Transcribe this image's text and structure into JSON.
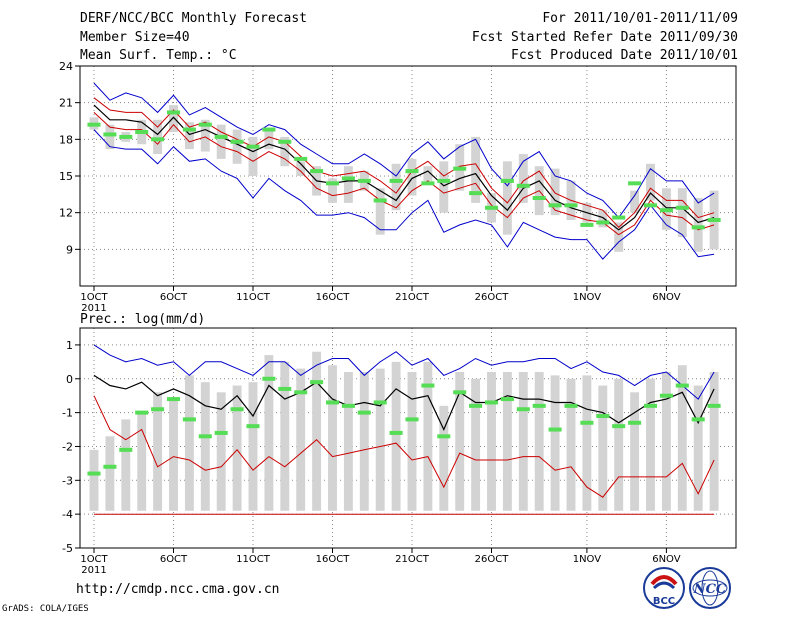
{
  "header": {
    "title": "DERF/NCC/BCC Monthly Forecast",
    "member_size": "Member Size=40",
    "variable": "Mean Surf. Temp.: °C",
    "period": "For 2011/10/01-2011/11/09",
    "start": "Fcst Started Refer Date 2011/09/30",
    "produced": "Fcst Produced Date 2011/10/01"
  },
  "footer": {
    "url": "http://cmdp.ncc.cma.gov.cn",
    "grads": "GrADS: COLA/IGES"
  },
  "logos": {
    "bcc": "BCC",
    "ncc": "NCC"
  },
  "colors": {
    "max": "#0000cc",
    "mean": "#000000",
    "min": "#cc0000",
    "bar": "#d3d3d3",
    "marker": "#55dd55",
    "grid": "#888888"
  },
  "chart_data": [
    {
      "type": "line",
      "title": "Mean Surf. Temp.: °C",
      "x_tick_labels": [
        "1OCT",
        "6OCT",
        "11OCT",
        "16OCT",
        "21OCT",
        "26OCT",
        "1NOV",
        "6NOV"
      ],
      "year_label": "2011",
      "x_tick_days": [
        1,
        6,
        11,
        16,
        21,
        26,
        32,
        37
      ],
      "days": 40,
      "ylim": [
        6,
        24
      ],
      "yticks": [
        9,
        12,
        15,
        18,
        21,
        24
      ],
      "series": [
        {
          "name": "max",
          "color": "#0000cc",
          "values": [
            22.6,
            21.2,
            21.8,
            21.4,
            20.2,
            21.6,
            20.0,
            20.6,
            19.8,
            19.0,
            18.4,
            19.2,
            18.8,
            17.6,
            16.8,
            16.0,
            16.0,
            16.8,
            16.0,
            15.0,
            16.8,
            17.8,
            16.4,
            17.4,
            18.0,
            15.6,
            14.2,
            16.2,
            17.0,
            15.0,
            14.6,
            13.6,
            13.0,
            11.6,
            13.4,
            15.6,
            14.6,
            14.6,
            12.8,
            13.6
          ]
        },
        {
          "name": "upper",
          "color": "#cc0000",
          "values": [
            21.4,
            20.4,
            20.2,
            20.2,
            19.0,
            20.4,
            19.0,
            19.4,
            18.6,
            18.0,
            17.4,
            18.2,
            17.8,
            16.6,
            15.4,
            15.0,
            15.2,
            15.4,
            14.6,
            13.6,
            15.4,
            16.2,
            15.0,
            15.8,
            16.0,
            14.0,
            12.8,
            14.6,
            15.4,
            13.6,
            13.0,
            12.6,
            12.2,
            10.8,
            12.0,
            14.0,
            13.0,
            13.0,
            11.6,
            12.0
          ]
        },
        {
          "name": "mean",
          "color": "#000000",
          "values": [
            20.8,
            19.6,
            19.6,
            19.4,
            18.4,
            19.8,
            18.4,
            18.8,
            18.2,
            17.6,
            17.0,
            17.6,
            17.2,
            16.0,
            14.6,
            14.4,
            14.6,
            14.6,
            13.8,
            13.0,
            14.8,
            15.4,
            14.2,
            14.8,
            15.2,
            13.4,
            12.2,
            14.0,
            14.6,
            13.0,
            12.4,
            12.0,
            11.6,
            10.6,
            11.6,
            13.6,
            12.4,
            12.4,
            11.2,
            11.6
          ]
        },
        {
          "name": "lower",
          "color": "#cc0000",
          "values": [
            20.2,
            19.0,
            18.8,
            18.8,
            17.6,
            19.2,
            17.8,
            18.2,
            17.4,
            17.0,
            16.2,
            17.0,
            16.4,
            15.4,
            14.0,
            13.4,
            13.6,
            14.0,
            13.0,
            12.4,
            13.8,
            14.6,
            13.6,
            14.0,
            14.4,
            12.6,
            11.6,
            13.2,
            13.8,
            12.2,
            11.8,
            11.4,
            11.2,
            10.2,
            11.0,
            13.0,
            11.8,
            11.6,
            10.6,
            11.0
          ]
        },
        {
          "name": "min",
          "color": "#0000cc",
          "values": [
            18.8,
            17.4,
            17.2,
            17.2,
            16.0,
            17.4,
            16.2,
            16.4,
            15.4,
            14.8,
            13.2,
            14.8,
            13.8,
            13.0,
            11.8,
            11.8,
            12.0,
            11.6,
            10.6,
            10.6,
            12.0,
            13.0,
            10.4,
            11.0,
            11.4,
            11.0,
            9.2,
            11.2,
            10.6,
            10.0,
            9.8,
            9.8,
            8.2,
            9.6,
            10.6,
            12.6,
            11.0,
            10.2,
            8.4,
            8.6
          ]
        }
      ],
      "bars": {
        "low": [
          18.8,
          17.2,
          17.8,
          17.6,
          16.8,
          18.6,
          17.2,
          17.0,
          16.4,
          16.0,
          15.0,
          17.2,
          15.8,
          15.0,
          13.4,
          12.8,
          12.8,
          13.8,
          10.2,
          12.2,
          13.4,
          14.6,
          12.0,
          13.8,
          12.8,
          11.2,
          10.2,
          12.8,
          11.8,
          11.8,
          11.4,
          11.2,
          10.8,
          8.8,
          12.0,
          13.0,
          10.6,
          10.0,
          8.8,
          9.0
        ],
        "high": [
          19.8,
          19.2,
          18.6,
          19.6,
          19.6,
          20.8,
          19.4,
          19.6,
          19.2,
          18.8,
          18.2,
          18.8,
          18.2,
          16.2,
          15.8,
          14.8,
          15.8,
          15.4,
          14.0,
          16.0,
          16.4,
          15.8,
          16.2,
          17.6,
          18.2,
          13.6,
          16.2,
          16.8,
          15.8,
          15.6,
          14.6,
          12.8,
          12.2,
          11.2,
          13.8,
          16.0,
          14.0,
          14.0,
          13.2,
          13.8
        ]
      },
      "markers": [
        19.2,
        18.4,
        18.2,
        18.6,
        18.0,
        20.2,
        18.8,
        19.2,
        18.2,
        17.8,
        17.4,
        18.8,
        17.8,
        16.4,
        15.4,
        14.4,
        14.8,
        14.6,
        13.0,
        14.6,
        15.4,
        14.4,
        14.6,
        15.6,
        13.6,
        12.4,
        14.6,
        14.2,
        13.2,
        12.6,
        12.6,
        11.0,
        11.2,
        11.6,
        14.4,
        12.6,
        12.2,
        12.4,
        10.8,
        11.4
      ]
    },
    {
      "type": "line",
      "title": "Prec.: log(mm/d)",
      "x_tick_labels": [
        "1OCT",
        "6OCT",
        "11OCT",
        "16OCT",
        "21OCT",
        "26OCT",
        "1NOV",
        "6NOV"
      ],
      "year_label": "2011",
      "x_tick_days": [
        1,
        6,
        11,
        16,
        21,
        26,
        32,
        37
      ],
      "days": 40,
      "ylim": [
        -5,
        1.5
      ],
      "yticks": [
        -5,
        -4,
        -3,
        -2,
        -1,
        0,
        1
      ],
      "series": [
        {
          "name": "max",
          "color": "#0000cc",
          "values": [
            1.0,
            0.7,
            0.5,
            0.6,
            0.4,
            0.5,
            0.1,
            0.5,
            0.5,
            0.3,
            0.1,
            0.5,
            0.5,
            0.1,
            0.4,
            0.6,
            0.6,
            0.1,
            0.5,
            0.8,
            0.4,
            0.6,
            0.1,
            0.3,
            0.6,
            0.4,
            0.5,
            0.5,
            0.6,
            0.6,
            0.3,
            0.5,
            0.2,
            0.1,
            -0.2,
            0.1,
            0.2,
            -0.2,
            -0.6,
            0.2
          ]
        },
        {
          "name": "mean",
          "color": "#000000",
          "values": [
            0.1,
            -0.2,
            -0.3,
            -0.1,
            -0.5,
            -0.3,
            -0.5,
            -0.8,
            -0.9,
            -0.5,
            -1.1,
            -0.2,
            -0.6,
            -0.4,
            -0.1,
            -0.6,
            -0.8,
            -0.7,
            -0.8,
            -0.3,
            -0.6,
            -0.5,
            -1.5,
            -0.4,
            -0.7,
            -0.7,
            -0.5,
            -0.6,
            -0.6,
            -0.7,
            -0.7,
            -0.9,
            -1.0,
            -1.3,
            -1.0,
            -0.7,
            -0.6,
            -0.4,
            -1.3,
            -0.3
          ]
        },
        {
          "name": "min",
          "color": "#cc0000",
          "values": [
            -0.5,
            -1.5,
            -1.8,
            -1.5,
            -2.6,
            -2.3,
            -2.4,
            -2.7,
            -2.6,
            -2.1,
            -2.7,
            -2.3,
            -2.6,
            -2.2,
            -1.8,
            -2.3,
            -2.2,
            -2.1,
            -2.0,
            -1.9,
            -2.4,
            -2.3,
            -3.2,
            -2.2,
            -2.4,
            -2.4,
            -2.4,
            -2.3,
            -2.3,
            -2.7,
            -2.6,
            -3.2,
            -3.5,
            -2.9,
            -2.9,
            -2.9,
            -2.9,
            -2.5,
            -3.4,
            -2.4
          ]
        },
        {
          "name": "floor",
          "color": "#cc0000",
          "values": [
            -4,
            -4,
            -4,
            -4,
            -4,
            -4,
            -4,
            -4,
            -4,
            -4,
            -4,
            -4,
            -4,
            -4,
            -4,
            -4,
            -4,
            -4,
            -4,
            -4,
            -4,
            -4,
            -4,
            -4,
            -4,
            -4,
            -4,
            -4,
            -4,
            -4,
            -4,
            -4,
            -4,
            -4,
            -4,
            -4,
            -4,
            -4,
            -4,
            -4
          ]
        }
      ],
      "bars": {
        "low": [
          -3.9,
          -3.9,
          -3.9,
          -3.9,
          -3.9,
          -3.9,
          -3.9,
          -3.9,
          -3.9,
          -3.9,
          -3.9,
          -3.9,
          -3.9,
          -3.9,
          -3.9,
          -3.9,
          -3.9,
          -3.9,
          -3.9,
          -3.9,
          -3.9,
          -3.9,
          -3.9,
          -3.9,
          -3.9,
          -3.9,
          -3.9,
          -3.9,
          -3.9,
          -3.9,
          -3.9,
          -3.9,
          -3.9,
          -3.9,
          -3.9,
          -3.9,
          -3.9,
          -3.9,
          -3.9,
          -3.9
        ],
        "high": [
          -2.1,
          -1.7,
          -1.2,
          -1.0,
          -0.4,
          -0.6,
          0.1,
          -0.1,
          -0.4,
          -0.2,
          -0.1,
          0.7,
          0.5,
          0.3,
          0.8,
          0.4,
          0.2,
          0.2,
          0.3,
          0.5,
          0.2,
          0.5,
          -0.8,
          0.2,
          0.0,
          0.2,
          0.2,
          0.2,
          0.2,
          0.1,
          0.0,
          0.1,
          -0.2,
          0.0,
          -0.4,
          0.0,
          0.2,
          0.4,
          -0.2,
          0.2
        ]
      },
      "markers": [
        -2.8,
        -2.6,
        -2.1,
        -1.0,
        -0.9,
        -0.6,
        -1.2,
        -1.7,
        -1.6,
        -0.9,
        -1.4,
        0.0,
        -0.3,
        -0.4,
        -0.1,
        -0.7,
        -0.8,
        -1.0,
        -0.7,
        -1.6,
        -1.2,
        -0.2,
        -1.7,
        -0.4,
        -0.8,
        -0.7,
        -0.6,
        -0.9,
        -0.8,
        -1.5,
        -0.8,
        -1.3,
        -1.1,
        -1.4,
        -1.3,
        -0.8,
        -0.5,
        -0.2,
        -1.2,
        -0.8
      ]
    }
  ],
  "precip_label": "Prec.: log(mm/d)"
}
